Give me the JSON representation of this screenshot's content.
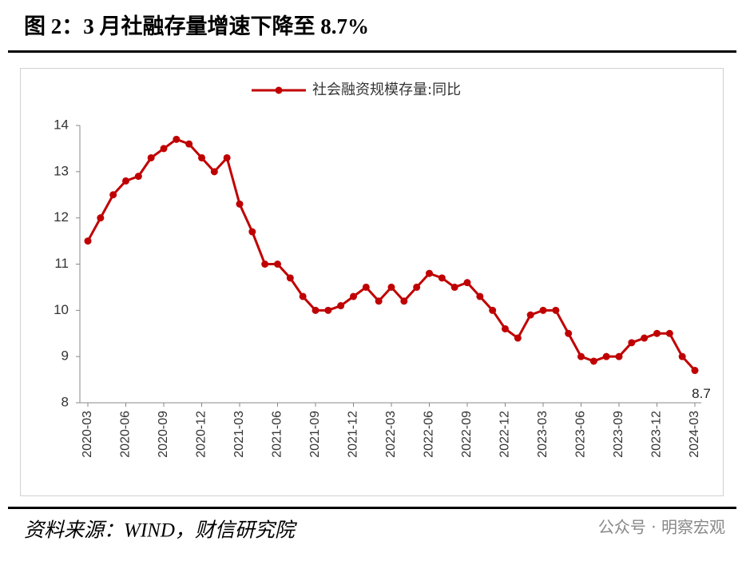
{
  "chart_data": {
    "type": "line",
    "title": "图 2：3 月社融存量增速下降至 8.7%",
    "source": "资料来源：WIND，财信研究院",
    "watermark": "公众号 · 明察宏观",
    "categories": [
      "2020-03",
      null,
      null,
      "2020-06",
      null,
      null,
      "2020-09",
      null,
      null,
      "2020-12",
      null,
      null,
      "2021-03",
      null,
      null,
      "2021-06",
      null,
      null,
      "2021-09",
      null,
      null,
      "2021-12",
      null,
      null,
      "2022-03",
      null,
      null,
      "2022-06",
      null,
      null,
      "2022-09",
      null,
      null,
      "2022-12",
      null,
      null,
      "2023-03",
      null,
      null,
      "2023-06",
      null,
      null,
      "2023-09",
      null,
      null,
      "2023-12",
      null,
      null,
      "2024-03"
    ],
    "series": [
      {
        "name": "社会融资规模存量:同比",
        "color": "#c00000",
        "values": [
          11.5,
          12.0,
          12.5,
          12.8,
          12.9,
          13.3,
          13.5,
          13.7,
          13.6,
          13.3,
          13.0,
          13.3,
          12.3,
          11.7,
          11.0,
          11.0,
          10.7,
          10.3,
          10.0,
          10.0,
          10.1,
          10.3,
          10.5,
          10.2,
          10.5,
          10.2,
          10.5,
          10.8,
          10.7,
          10.5,
          10.6,
          10.3,
          10.0,
          9.6,
          9.4,
          9.9,
          10.0,
          10.0,
          9.5,
          9.0,
          8.9,
          9.0,
          9.0,
          9.3,
          9.4,
          9.5,
          9.5,
          9.0,
          8.7
        ]
      }
    ],
    "ylim": [
      8,
      14
    ],
    "yticks": [
      8,
      9,
      10,
      11,
      12,
      13,
      14
    ],
    "legend": "top"
  }
}
